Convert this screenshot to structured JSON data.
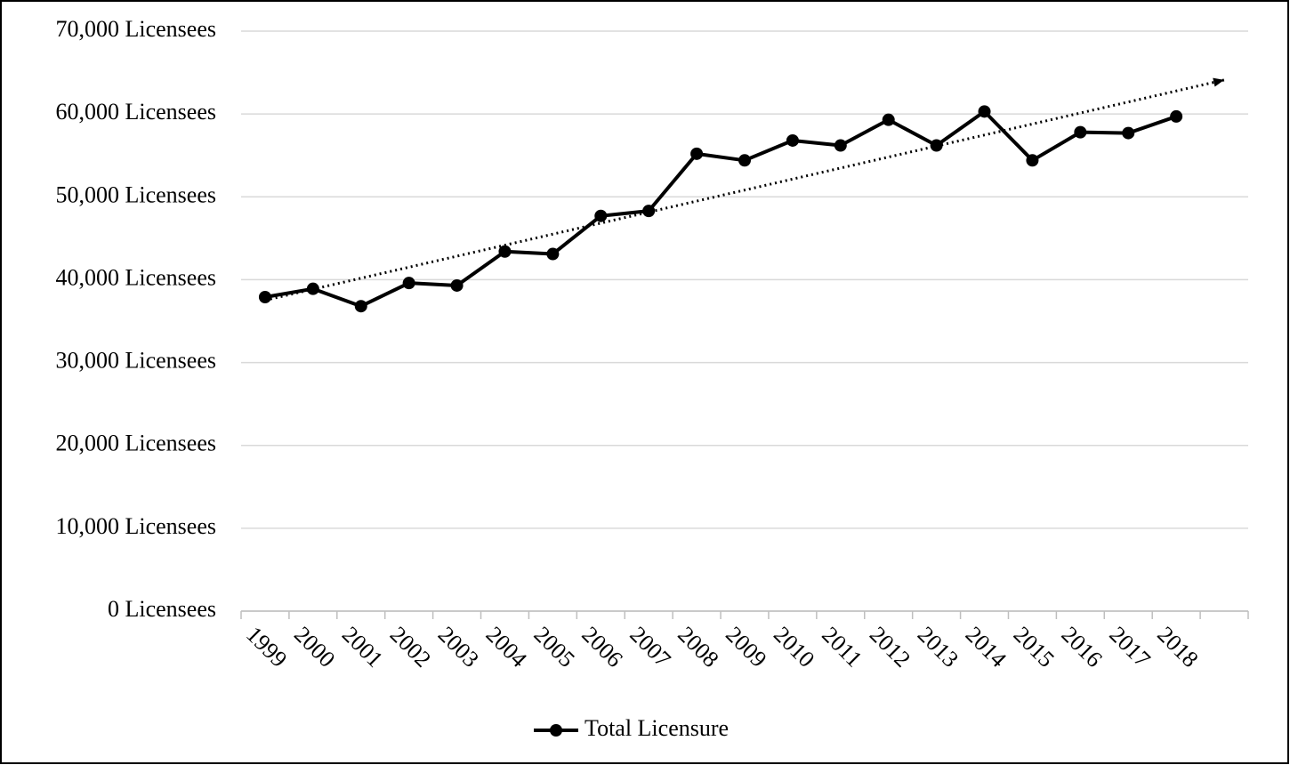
{
  "chart_data": {
    "type": "line",
    "categories": [
      "1999",
      "2000",
      "2001",
      "2002",
      "2003",
      "2004",
      "2005",
      "2006",
      "2007",
      "2008",
      "2009",
      "2010",
      "2011",
      "2012",
      "2013",
      "2014",
      "2015",
      "2016",
      "2017",
      "2018",
      null
    ],
    "series": [
      {
        "name": "Total Licensure",
        "color": "#000000",
        "values": [
          37900,
          38900,
          36800,
          39600,
          39300,
          43400,
          43100,
          47700,
          48300,
          55200,
          54400,
          56800,
          56200,
          59300,
          56200,
          60300,
          54400,
          57800,
          57700,
          59700,
          null
        ]
      }
    ],
    "ylim": [
      0,
      70000
    ],
    "yticks": [
      {
        "value": 0,
        "label": "0 Licensees"
      },
      {
        "value": 10000,
        "label": "10,000 Licensees"
      },
      {
        "value": 20000,
        "label": "20,000 Licensees"
      },
      {
        "value": 30000,
        "label": "30,000 Licensees"
      },
      {
        "value": 40000,
        "label": "40,000 Licensees"
      },
      {
        "value": 50000,
        "label": "50,000 Licensees"
      },
      {
        "value": 60000,
        "label": "60,000 Licensees"
      },
      {
        "value": 70000,
        "label": "70,000 Licensees"
      }
    ],
    "grid": true,
    "trendline": "linear",
    "legend": "bottom"
  }
}
